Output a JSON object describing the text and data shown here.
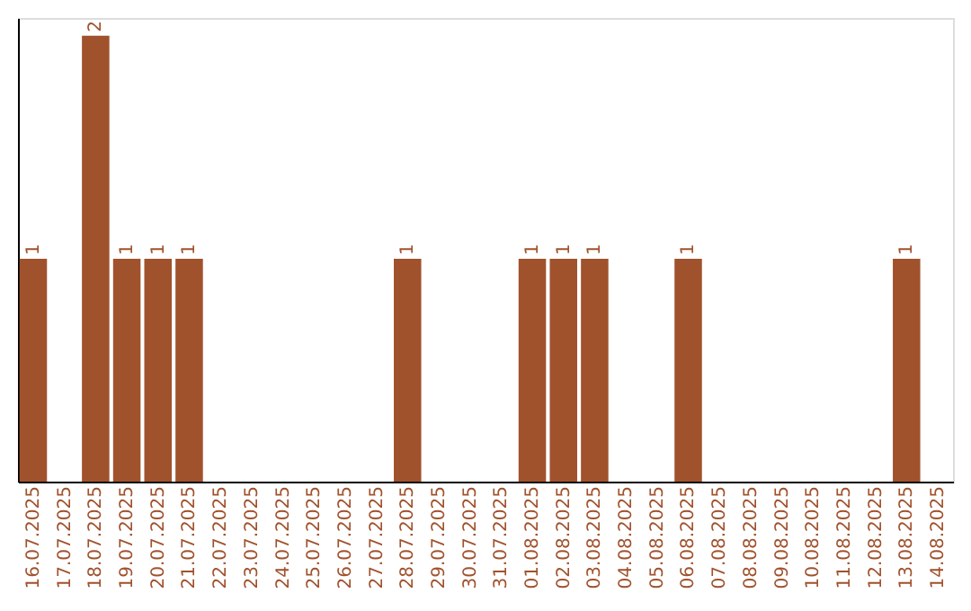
{
  "chart_data": {
    "type": "bar",
    "categories": [
      "16.07.2025",
      "17.07.2025",
      "18.07.2025",
      "19.07.2025",
      "20.07.2025",
      "21.07.2025",
      "22.07.2025",
      "23.07.2025",
      "24.07.2025",
      "25.07.2025",
      "26.07.2025",
      "27.07.2025",
      "28.07.2025",
      "29.07.2025",
      "30.07.2025",
      "31.07.2025",
      "01.08.2025",
      "02.08.2025",
      "03.08.2025",
      "04.08.2025",
      "05.08.2025",
      "06.08.2025",
      "07.08.2025",
      "08.08.2025",
      "09.08.2025",
      "10.08.2025",
      "11.08.2025",
      "12.08.2025",
      "13.08.2025",
      "14.08.2025"
    ],
    "values": [
      1,
      0,
      2,
      1,
      1,
      1,
      0,
      0,
      0,
      0,
      0,
      0,
      1,
      0,
      0,
      0,
      1,
      1,
      1,
      0,
      0,
      1,
      0,
      0,
      0,
      0,
      0,
      0,
      1,
      0
    ],
    "value_labels": [
      "1",
      null,
      "2",
      "1",
      "1",
      "1",
      null,
      null,
      null,
      null,
      null,
      null,
      "1",
      null,
      null,
      null,
      "1",
      "1",
      "1",
      null,
      null,
      "1",
      null,
      null,
      null,
      null,
      null,
      null,
      "1",
      null
    ],
    "color": "#a0522d",
    "tick_labels": "x"
  }
}
